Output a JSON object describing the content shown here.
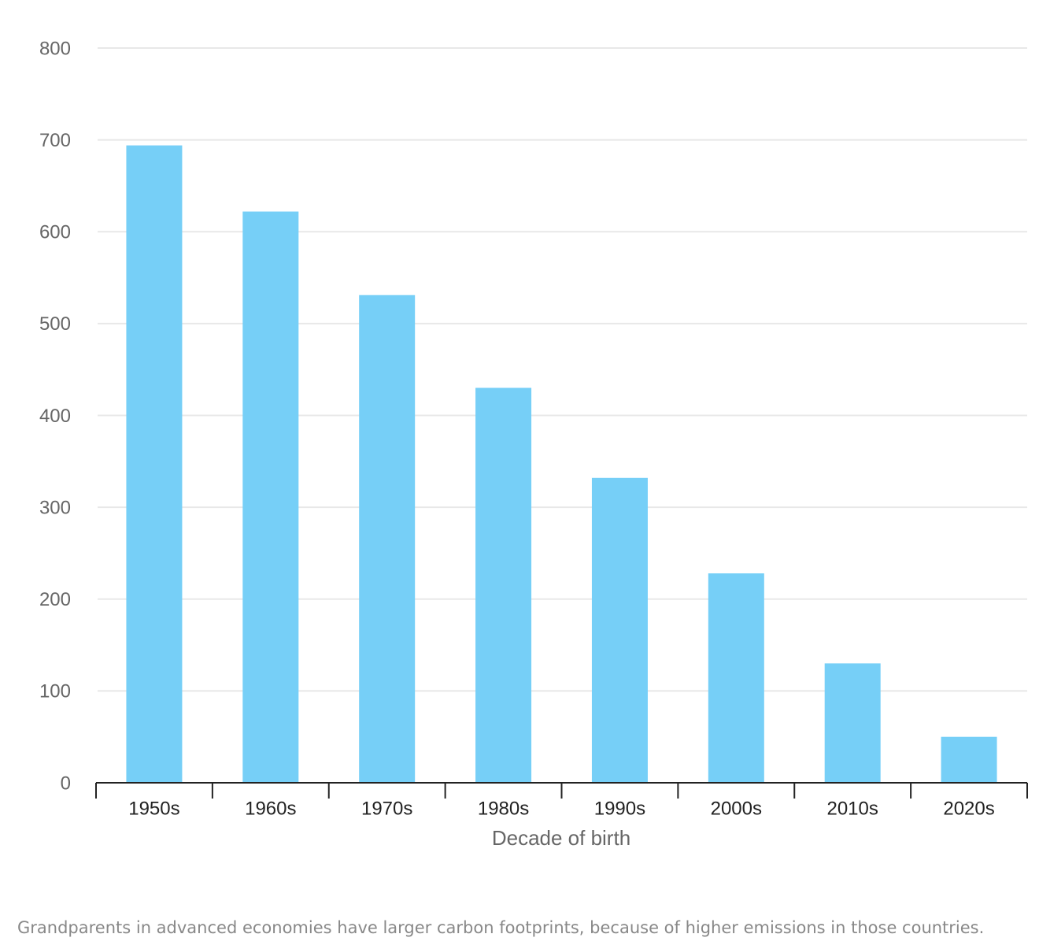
{
  "chart_data": {
    "type": "bar",
    "x_label": "Decade of birth",
    "caption": "Grandparents in advanced economies have larger carbon footprints, because of higher emissions in those countries.",
    "categories": [
      "1950s",
      "1960s",
      "1970s",
      "1980s",
      "1990s",
      "2000s",
      "2010s",
      "2020s"
    ],
    "values": [
      694,
      622,
      531,
      430,
      332,
      228,
      130,
      50
    ],
    "color": "#76cff7",
    "ylim": [
      0,
      800
    ],
    "yticks": [
      0,
      100,
      200,
      300,
      400,
      500,
      600,
      700,
      800
    ],
    "grid": true
  }
}
